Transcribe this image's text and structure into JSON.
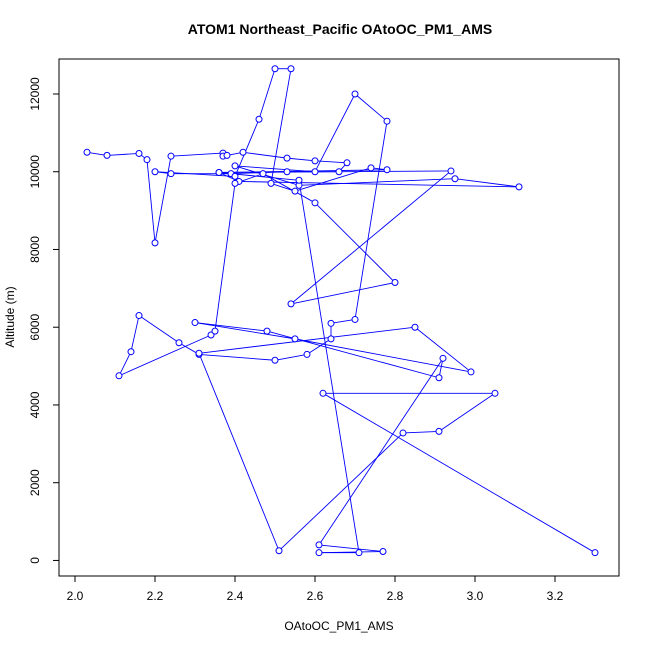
{
  "chart_data": {
    "type": "line",
    "title": "ATOM1 Northeast_Pacific OAtoOC_PM1_AMS",
    "xlabel": "OAtoOC_PM1_AMS",
    "ylabel": "Altitude (m)",
    "xlim": [
      1.96,
      3.36
    ],
    "ylim": [
      -400,
      12900
    ],
    "xticks": [
      "2.0",
      "2.2",
      "2.4",
      "2.6",
      "2.8",
      "3.0",
      "3.2"
    ],
    "yticks": [
      "0",
      "2000",
      "4000",
      "6000",
      "8000",
      "10000",
      "12000"
    ],
    "grid": false,
    "legend": "none",
    "line_color": "#0000ff",
    "marker": "open-circle",
    "series": [
      {
        "x": [
          2.03,
          2.08,
          2.16,
          2.18,
          2.2,
          2.24,
          2.37,
          2.37,
          2.38,
          2.42,
          2.53,
          2.6,
          2.68,
          2.66,
          2.53,
          2.39,
          2.24,
          2.2,
          2.4,
          2.46,
          2.5,
          2.54,
          2.49,
          2.55,
          2.74,
          2.78,
          2.36,
          2.41,
          3.11,
          2.95,
          2.56,
          2.4,
          2.6,
          2.7,
          2.78,
          2.7,
          2.64,
          2.64,
          2.58,
          2.5,
          2.31,
          2.26,
          2.16,
          2.14,
          2.11,
          2.34,
          2.35,
          2.4,
          2.47,
          2.6,
          2.8,
          2.54,
          2.94,
          2.36,
          2.56,
          2.71,
          2.61,
          2.77,
          2.61,
          2.92,
          2.91,
          2.48,
          2.3,
          2.55,
          2.99,
          2.85,
          2.31,
          2.51,
          2.82,
          2.91,
          3.05,
          2.62,
          3.3
        ],
        "y": [
          10500,
          10420,
          10470,
          10310,
          8170,
          10400,
          10480,
          10400,
          10420,
          10500,
          10350,
          10280,
          10230,
          10000,
          10000,
          9950,
          9950,
          10000,
          9880,
          11350,
          12650,
          12650,
          9700,
          9500,
          10100,
          10050,
          9980,
          9750,
          9610,
          9820,
          9650,
          10150,
          10000,
          12000,
          11300,
          6200,
          6100,
          5700,
          5300,
          5150,
          5300,
          5600,
          6300,
          5370,
          4750,
          5800,
          5900,
          9700,
          9950,
          9200,
          7150,
          6600,
          10020,
          9980,
          9780,
          200,
          200,
          230,
          400,
          5200,
          4700,
          5900,
          6120,
          5700,
          4850,
          6000,
          5330,
          250,
          3280,
          3320,
          4300,
          4300,
          200
        ]
      }
    ]
  }
}
